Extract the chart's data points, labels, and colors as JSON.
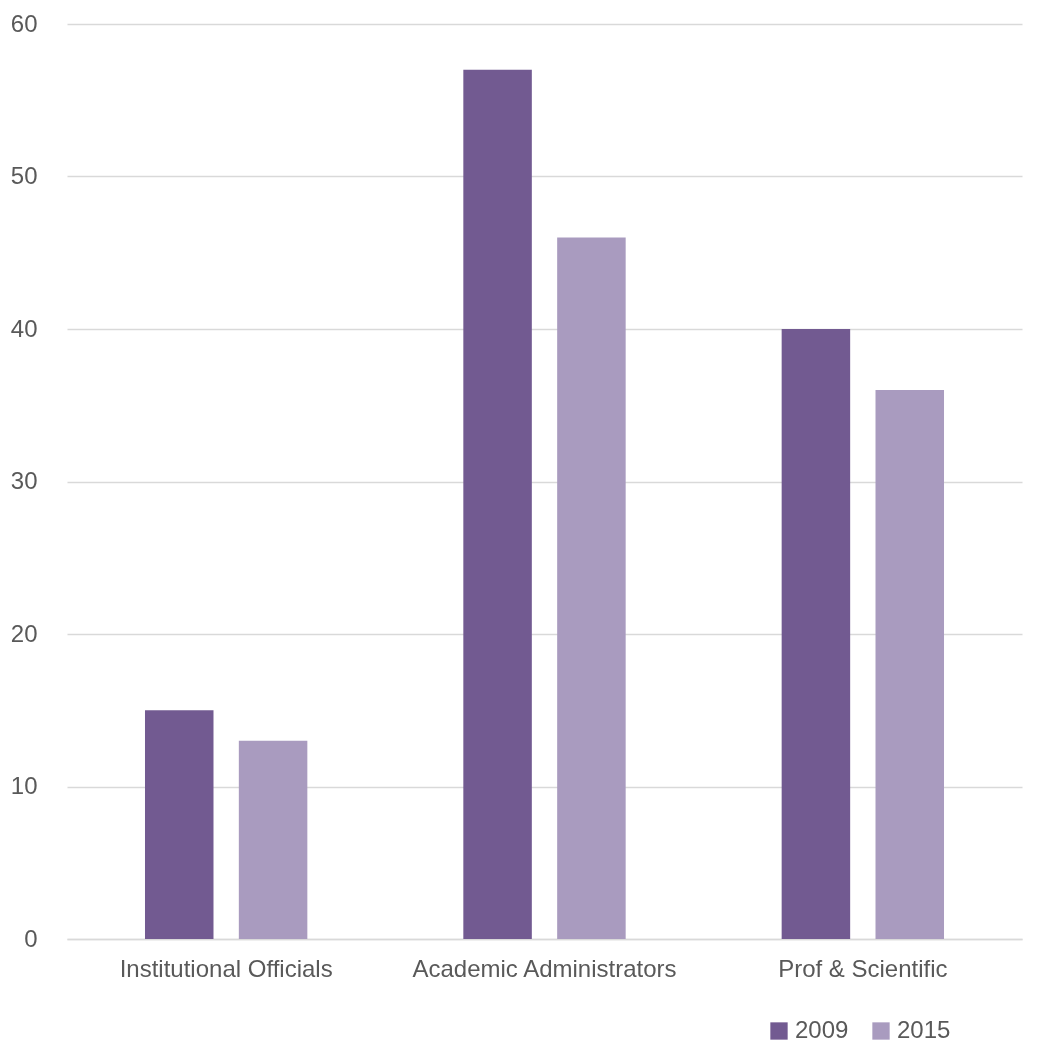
{
  "chart_data": {
    "type": "bar",
    "categories": [
      "Institutional Officials",
      "Academic Administrators",
      "Prof & Scientific"
    ],
    "series": [
      {
        "name": "2009",
        "color": "#725a91",
        "values": [
          15,
          57,
          40
        ]
      },
      {
        "name": "2015",
        "color": "#a99bbf",
        "values": [
          13,
          46,
          36
        ]
      }
    ],
    "ylim": [
      0,
      60
    ],
    "yticks": [
      0,
      10,
      20,
      30,
      40,
      50,
      60
    ],
    "grid": "y",
    "legend": "bottom right"
  }
}
